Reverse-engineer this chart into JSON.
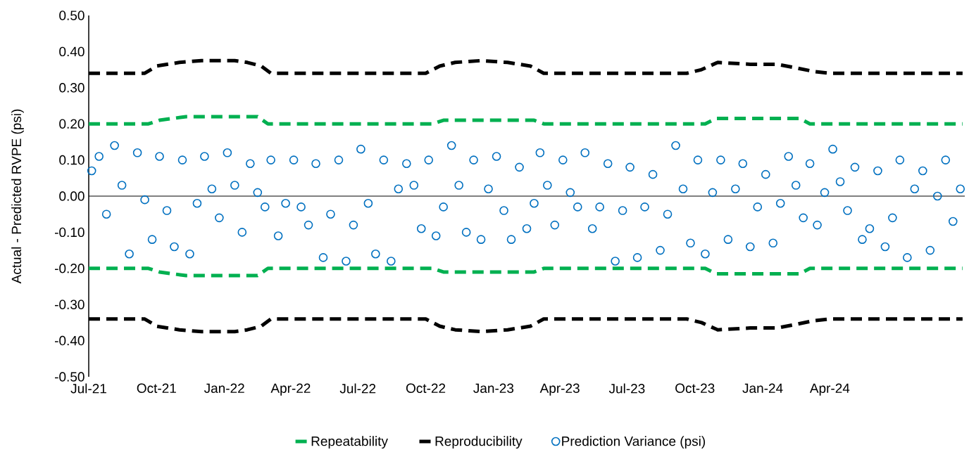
{
  "chart_data": {
    "type": "scatter",
    "ylabel": "Actual - Predicted RVPE (psi)",
    "legend": "bottom",
    "xlim": [
      "2021-07-01",
      "2024-10-01"
    ],
    "ylim": [
      -0.5,
      0.5
    ],
    "xticks": [
      {
        "value": "2021-07-01",
        "label": "Jul-21"
      },
      {
        "value": "2021-10-01",
        "label": "Oct-21"
      },
      {
        "value": "2022-01-01",
        "label": "Jan-22"
      },
      {
        "value": "2022-04-01",
        "label": "Apr-22"
      },
      {
        "value": "2022-07-01",
        "label": "Jul-22"
      },
      {
        "value": "2022-10-01",
        "label": "Oct-22"
      },
      {
        "value": "2023-01-01",
        "label": "Jan-23"
      },
      {
        "value": "2023-04-01",
        "label": "Apr-23"
      },
      {
        "value": "2023-07-01",
        "label": "Jul-23"
      },
      {
        "value": "2023-10-01",
        "label": "Oct-23"
      },
      {
        "value": "2024-01-01",
        "label": "Jan-24"
      },
      {
        "value": "2024-04-01",
        "label": "Apr-24"
      }
    ],
    "yticks": [
      {
        "value": -0.5,
        "label": "-0.50"
      },
      {
        "value": -0.4,
        "label": "-0.40"
      },
      {
        "value": -0.3,
        "label": "-0.30"
      },
      {
        "value": -0.2,
        "label": "-0.20"
      },
      {
        "value": -0.1,
        "label": "-0.10"
      },
      {
        "value": 0,
        "label": "0.00"
      },
      {
        "value": 0.1,
        "label": "0.10"
      },
      {
        "value": 0.2,
        "label": "0.20"
      },
      {
        "value": 0.3,
        "label": "0.30"
      },
      {
        "value": 0.4,
        "label": "0.40"
      },
      {
        "value": 0.5,
        "label": "0.50"
      }
    ],
    "series": [
      {
        "name": "Repeatability",
        "type": "line",
        "color": "#00b050",
        "line_style": "dashed",
        "marker": "none",
        "x": [
          "2021-07-01",
          "2021-09-20",
          "2021-10-05",
          "2021-11-10",
          "2022-02-15",
          "2022-03-01",
          "2022-10-10",
          "2022-10-25",
          "2023-02-25",
          "2023-03-10",
          "2023-10-15",
          "2023-10-30",
          "2024-02-20",
          "2024-03-05",
          "2024-09-28"
        ],
        "values": [
          0.2,
          0.2,
          0.21,
          0.22,
          0.22,
          0.2,
          0.2,
          0.21,
          0.21,
          0.2,
          0.2,
          0.215,
          0.215,
          0.2,
          0.2
        ]
      },
      {
        "type": "line",
        "color": "#00b050",
        "line_style": "dashed",
        "marker": "none",
        "x": [
          "2021-07-01",
          "2021-09-20",
          "2021-10-05",
          "2021-11-10",
          "2022-02-15",
          "2022-03-01",
          "2022-10-10",
          "2022-10-25",
          "2023-02-25",
          "2023-03-10",
          "2023-10-15",
          "2023-10-30",
          "2024-02-20",
          "2024-03-05",
          "2024-09-28"
        ],
        "values": [
          -0.2,
          -0.2,
          -0.21,
          -0.22,
          -0.22,
          -0.2,
          -0.2,
          -0.21,
          -0.21,
          -0.2,
          -0.2,
          -0.215,
          -0.215,
          -0.2,
          -0.2
        ]
      },
      {
        "name": "Reproducibility",
        "type": "line",
        "color": "#000000",
        "line_style": "dashed",
        "marker": "none",
        "x": [
          "2021-07-01",
          "2021-09-15",
          "2021-10-01",
          "2021-11-01",
          "2021-12-01",
          "2022-01-15",
          "2022-02-01",
          "2022-02-20",
          "2022-03-05",
          "2022-10-01",
          "2022-10-20",
          "2022-11-10",
          "2022-12-15",
          "2023-01-20",
          "2023-02-20",
          "2023-03-10",
          "2023-09-20",
          "2023-10-10",
          "2023-11-01",
          "2023-12-15",
          "2024-01-20",
          "2024-02-15",
          "2024-03-10",
          "2024-04-01",
          "2024-09-28"
        ],
        "values": [
          0.34,
          0.34,
          0.36,
          0.37,
          0.375,
          0.375,
          0.37,
          0.36,
          0.34,
          0.34,
          0.36,
          0.37,
          0.375,
          0.37,
          0.36,
          0.34,
          0.34,
          0.35,
          0.37,
          0.365,
          0.365,
          0.355,
          0.345,
          0.34,
          0.34
        ]
      },
      {
        "type": "line",
        "color": "#000000",
        "line_style": "dashed",
        "marker": "none",
        "x": [
          "2021-07-01",
          "2021-09-15",
          "2021-10-01",
          "2021-11-01",
          "2021-12-01",
          "2022-01-15",
          "2022-02-01",
          "2022-02-20",
          "2022-03-05",
          "2022-10-01",
          "2022-10-20",
          "2022-11-10",
          "2022-12-15",
          "2023-01-20",
          "2023-02-20",
          "2023-03-10",
          "2023-09-20",
          "2023-10-10",
          "2023-11-01",
          "2023-12-15",
          "2024-01-20",
          "2024-02-15",
          "2024-03-10",
          "2024-04-01",
          "2024-09-28"
        ],
        "values": [
          -0.34,
          -0.34,
          -0.36,
          -0.37,
          -0.375,
          -0.375,
          -0.37,
          -0.36,
          -0.34,
          -0.34,
          -0.36,
          -0.37,
          -0.375,
          -0.37,
          -0.36,
          -0.34,
          -0.34,
          -0.35,
          -0.37,
          -0.365,
          -0.365,
          -0.355,
          -0.345,
          -0.34,
          -0.34
        ]
      },
      {
        "name": "Prediction Variance (psi)",
        "color": "#0070c0",
        "marker": "circle",
        "x": [
          "2021-07-05",
          "2021-07-15",
          "2021-07-25",
          "2021-08-05",
          "2021-08-15",
          "2021-08-25",
          "2021-09-05",
          "2021-09-15",
          "2021-09-25",
          "2021-10-05",
          "2021-10-15",
          "2021-10-25",
          "2021-11-05",
          "2021-11-15",
          "2021-11-25",
          "2021-12-05",
          "2021-12-15",
          "2021-12-25",
          "2022-01-05",
          "2022-01-15",
          "2022-01-25",
          "2022-02-05",
          "2022-02-15",
          "2022-02-25",
          "2022-03-05",
          "2022-03-15",
          "2022-03-25",
          "2022-04-05",
          "2022-04-15",
          "2022-04-25",
          "2022-05-05",
          "2022-05-15",
          "2022-05-25",
          "2022-06-05",
          "2022-06-15",
          "2022-06-25",
          "2022-07-05",
          "2022-07-15",
          "2022-07-25",
          "2022-08-05",
          "2022-08-15",
          "2022-08-25",
          "2022-09-05",
          "2022-09-15",
          "2022-09-25",
          "2022-10-05",
          "2022-10-15",
          "2022-10-25",
          "2022-11-05",
          "2022-11-15",
          "2022-11-25",
          "2022-12-05",
          "2022-12-15",
          "2022-12-25",
          "2023-01-05",
          "2023-01-15",
          "2023-01-25",
          "2023-02-05",
          "2023-02-15",
          "2023-02-25",
          "2023-03-05",
          "2023-03-15",
          "2023-03-25",
          "2023-04-05",
          "2023-04-15",
          "2023-04-25",
          "2023-05-05",
          "2023-05-15",
          "2023-05-25",
          "2023-06-05",
          "2023-06-15",
          "2023-06-25",
          "2023-07-05",
          "2023-07-15",
          "2023-07-25",
          "2023-08-05",
          "2023-08-15",
          "2023-08-25",
          "2023-09-05",
          "2023-09-15",
          "2023-09-25",
          "2023-10-05",
          "2023-10-15",
          "2023-10-25",
          "2023-11-05",
          "2023-11-15",
          "2023-11-25",
          "2023-12-05",
          "2023-12-15",
          "2023-12-25",
          "2024-01-05",
          "2024-01-15",
          "2024-01-25",
          "2024-02-05",
          "2024-02-15",
          "2024-02-25",
          "2024-03-05",
          "2024-03-15",
          "2024-03-25",
          "2024-04-05",
          "2024-04-15",
          "2024-04-25",
          "2024-05-05",
          "2024-05-15",
          "2024-05-25",
          "2024-06-05",
          "2024-06-15",
          "2024-06-25",
          "2024-07-05",
          "2024-07-15",
          "2024-07-25",
          "2024-08-05",
          "2024-08-15",
          "2024-08-25",
          "2024-09-05",
          "2024-09-15",
          "2024-09-25"
        ],
        "values": [
          0.07,
          0.11,
          -0.05,
          0.14,
          0.03,
          -0.16,
          0.12,
          -0.01,
          -0.12,
          0.11,
          -0.04,
          -0.14,
          0.1,
          -0.16,
          -0.02,
          0.11,
          0.02,
          -0.06,
          0.12,
          0.03,
          -0.1,
          0.09,
          0.01,
          -0.03,
          0.1,
          -0.11,
          -0.02,
          0.1,
          -0.03,
          -0.08,
          0.09,
          -0.17,
          -0.05,
          0.1,
          -0.18,
          -0.08,
          0.13,
          -0.02,
          -0.16,
          0.1,
          -0.18,
          0.02,
          0.09,
          0.03,
          -0.09,
          0.1,
          -0.11,
          -0.03,
          0.14,
          0.03,
          -0.1,
          0.1,
          -0.12,
          0.02,
          0.11,
          -0.04,
          -0.12,
          0.08,
          -0.09,
          -0.02,
          0.12,
          0.03,
          -0.08,
          0.1,
          0.01,
          -0.03,
          0.12,
          -0.09,
          -0.03,
          0.09,
          -0.18,
          -0.04,
          0.08,
          -0.17,
          -0.03,
          0.06,
          -0.15,
          -0.05,
          0.14,
          0.02,
          -0.13,
          0.1,
          -0.16,
          0.01,
          0.1,
          -0.12,
          0.02,
          0.09,
          -0.14,
          -0.03,
          0.06,
          -0.13,
          -0.02,
          0.11,
          0.03,
          -0.06,
          0.09,
          -0.08,
          0.01,
          0.13,
          0.04,
          -0.04,
          0.08,
          -0.12,
          -0.09,
          0.07,
          -0.14,
          -0.06,
          0.1,
          -0.17,
          0.02,
          0.07,
          -0.15,
          0.0,
          0.1,
          -0.07,
          0.02
        ]
      }
    ]
  }
}
